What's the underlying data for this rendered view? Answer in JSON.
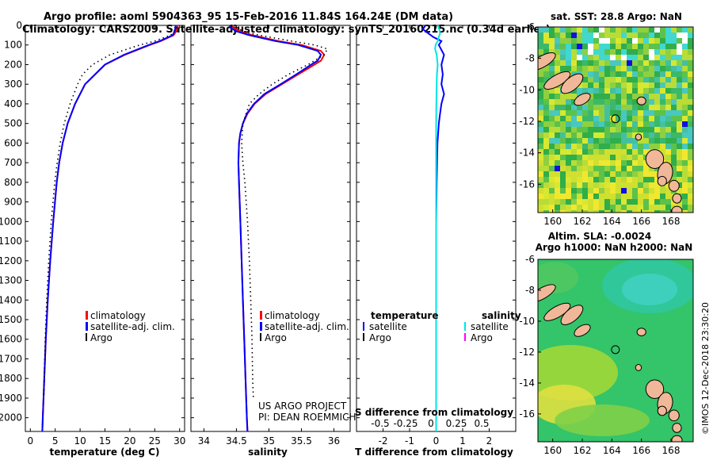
{
  "title_line1": "Argo profile: aoml 5904363_95 15-Feb-2016 11.84S 164.24E (DM data)",
  "title_line2": "Climatology: CARS2009. Satellite-adjusted climatology: synTS_20160215.nc (0.34d earlier)",
  "credit_line1": "US ARGO PROJECT",
  "credit_line2": "PI: DEAN ROEMMICH",
  "imos_stamp": "©IMOS 12-Dec-2018 23:30:20",
  "colors": {
    "climatology": "#ff0000",
    "satellite": "#0000ff",
    "argo": "#000000",
    "salinity_satellite": "#00e5e5",
    "salinity_argo": "#ff00ff"
  },
  "chart_data": [
    {
      "type": "line",
      "name": "temperature-profile",
      "xlabel": "temperature (deg C)",
      "ylabel": "depth",
      "xlim": [
        -1,
        31
      ],
      "ylim": [
        2070,
        0
      ],
      "xticks": [
        0,
        5,
        10,
        15,
        20,
        25,
        30
      ],
      "yticks": [
        0,
        100,
        200,
        300,
        400,
        500,
        600,
        700,
        800,
        900,
        1000,
        1100,
        1200,
        1300,
        1400,
        1500,
        1600,
        1700,
        1800,
        1900,
        2000
      ],
      "legend": [
        "climatology",
        "satellite-adj. clim.",
        "Argo"
      ],
      "series": [
        {
          "name": "climatology",
          "style": "solid",
          "color": "#ff0000",
          "depth": [
            0,
            10,
            30,
            50,
            80,
            100,
            150,
            200,
            300,
            400,
            500,
            600,
            700,
            800,
            1000,
            1200,
            1400,
            1600,
            1800,
            2000,
            2070
          ],
          "values": [
            29.6,
            29.6,
            29.3,
            28.8,
            26.2,
            24.0,
            19.0,
            15.0,
            11.0,
            9.0,
            7.5,
            6.5,
            5.8,
            5.3,
            4.6,
            4.0,
            3.5,
            3.1,
            2.8,
            2.5,
            2.4
          ]
        },
        {
          "name": "satellite-adj. clim.",
          "style": "solid",
          "color": "#0000ff",
          "depth": [
            0,
            10,
            30,
            50,
            80,
            100,
            150,
            200,
            300,
            400,
            500,
            600,
            700,
            800,
            1000,
            1200,
            1400,
            1600,
            1800,
            2000,
            2070
          ],
          "values": [
            29.2,
            29.2,
            29.0,
            28.6,
            26.0,
            23.8,
            18.8,
            15.0,
            11.0,
            9.0,
            7.5,
            6.5,
            5.8,
            5.3,
            4.6,
            4.0,
            3.5,
            3.1,
            2.8,
            2.5,
            2.4
          ]
        },
        {
          "name": "Argo",
          "style": "dotted",
          "color": "#000000",
          "depth": [
            10,
            30,
            50,
            80,
            100,
            150,
            200,
            250,
            300,
            400,
            500,
            600,
            700,
            800,
            1000,
            1200,
            1400,
            1600,
            1800,
            1900
          ],
          "values": [
            29.5,
            29.0,
            28.2,
            25.0,
            22.0,
            16.0,
            12.5,
            10.5,
            9.5,
            8.0,
            6.8,
            6.0,
            5.4,
            4.9,
            4.2,
            3.7,
            3.3,
            3.0,
            2.8,
            2.7
          ]
        }
      ]
    },
    {
      "type": "line",
      "name": "salinity-profile",
      "xlabel": "salinity",
      "xlim": [
        33.8,
        36.25
      ],
      "ylim": [
        2070,
        0
      ],
      "xticks": [
        34,
        34.5,
        35,
        35.5,
        36
      ],
      "legend": [
        "climatology",
        "satellite-adj. clim.",
        "Argo"
      ],
      "series": [
        {
          "name": "climatology",
          "style": "solid",
          "color": "#ff0000",
          "depth": [
            0,
            10,
            30,
            50,
            80,
            100,
            130,
            150,
            180,
            200,
            250,
            300,
            350,
            400,
            450,
            500,
            550,
            600,
            700,
            800,
            1000,
            1200,
            1400,
            1600,
            1800,
            2000,
            2070
          ],
          "values": [
            34.45,
            34.45,
            34.55,
            34.75,
            35.15,
            35.5,
            35.8,
            35.85,
            35.8,
            35.7,
            35.45,
            35.2,
            34.95,
            34.78,
            34.67,
            34.6,
            34.56,
            34.54,
            34.53,
            34.54,
            34.56,
            34.58,
            34.6,
            34.62,
            34.64,
            34.66,
            34.67
          ]
        },
        {
          "name": "satellite-adj. clim.",
          "style": "solid",
          "color": "#0000ff",
          "depth": [
            0,
            10,
            30,
            50,
            80,
            100,
            130,
            150,
            180,
            200,
            250,
            300,
            350,
            400,
            450,
            500,
            550,
            600,
            700,
            800,
            1000,
            1200,
            1400,
            1600,
            1800,
            2000,
            2070
          ],
          "values": [
            34.4,
            34.4,
            34.5,
            34.7,
            35.1,
            35.45,
            35.75,
            35.8,
            35.75,
            35.65,
            35.42,
            35.18,
            34.93,
            34.77,
            34.66,
            34.6,
            34.56,
            34.54,
            34.53,
            34.54,
            34.56,
            34.58,
            34.6,
            34.62,
            34.64,
            34.66,
            34.67
          ]
        },
        {
          "name": "Argo",
          "style": "dotted",
          "color": "#000000",
          "depth": [
            10,
            30,
            50,
            80,
            100,
            120,
            150,
            200,
            250,
            300,
            350,
            400,
            500,
            600,
            700,
            800,
            1000,
            1200,
            1400,
            1600,
            1800,
            1900
          ],
          "values": [
            34.5,
            34.6,
            34.85,
            35.35,
            35.7,
            35.9,
            35.85,
            35.6,
            35.3,
            35.05,
            34.85,
            34.7,
            34.6,
            34.58,
            34.6,
            34.63,
            34.67,
            34.7,
            34.72,
            34.74,
            34.75,
            34.76
          ]
        }
      ]
    },
    {
      "type": "line",
      "name": "difference-profile",
      "xlabel": "T difference from climatology",
      "xlabel2": "S difference from climatology",
      "xlim": [
        -3,
        3
      ],
      "ylim": [
        2070,
        0
      ],
      "xticks": [
        -2,
        -1,
        0,
        1,
        2
      ],
      "s_ticks": [
        "-0.5",
        "-0.25",
        "0",
        "0.25",
        "0.5"
      ],
      "legend": {
        "temperature_title": "temperature",
        "salinity_title": "salinity",
        "temperature": [
          "satellite",
          "Argo"
        ],
        "salinity": [
          "satellite",
          "Argo"
        ]
      },
      "series": [
        {
          "name": "temperature satellite",
          "color": "#0000ff",
          "depth": [
            0,
            20,
            40,
            60,
            80,
            100,
            150,
            200,
            250,
            300,
            350,
            400,
            450,
            500,
            600,
            800,
            1000,
            1200,
            1500,
            1800,
            2000,
            2070
          ],
          "values": [
            -0.4,
            -0.5,
            -0.3,
            -0.1,
            0.2,
            0.1,
            0.3,
            0.2,
            0.25,
            0.2,
            0.3,
            0.2,
            0.15,
            0.1,
            0.05,
            0.02,
            0.0,
            0.0,
            0.0,
            0.0,
            0.0,
            0.0
          ]
        },
        {
          "name": "salinity satellite",
          "color": "#00e5e5",
          "depth": [
            0,
            20,
            40,
            60,
            80,
            100,
            120,
            150,
            200,
            250,
            300,
            400,
            500,
            600,
            800,
            1000,
            1200,
            1500,
            1800,
            2000,
            2070
          ],
          "values": [
            0.05,
            0.12,
            0.15,
            0.1,
            0.06,
            -0.02,
            -0.04,
            0.02,
            0.06,
            0.03,
            0.02,
            0.01,
            0.0,
            0.0,
            0.0,
            0.0,
            0.0,
            0.0,
            0.0,
            0.0,
            0.0
          ]
        }
      ]
    },
    {
      "type": "heatmap",
      "name": "sst-map",
      "title": "sat. SST: 28.8 Argo: NaN",
      "xlim": [
        159,
        169.5
      ],
      "ylim": [
        -17.8,
        -6
      ],
      "xticks": [
        160,
        162,
        164,
        166,
        168
      ],
      "yticks": [
        -6,
        -8,
        -10,
        -12,
        -14,
        -16
      ],
      "profile_location": {
        "lon": 164.24,
        "lat": -11.84
      }
    },
    {
      "type": "heatmap",
      "name": "sla-map",
      "title": "Altim. SLA: -0.0024",
      "title2": "Argo h1000: NaN h2000: NaN",
      "xlim": [
        159,
        169.5
      ],
      "ylim": [
        -17.8,
        -6
      ],
      "xticks": [
        160,
        162,
        164,
        166,
        168
      ],
      "yticks": [
        -6,
        -8,
        -10,
        -12,
        -14,
        -16
      ],
      "profile_location": {
        "lon": 164.24,
        "lat": -11.84
      }
    }
  ]
}
